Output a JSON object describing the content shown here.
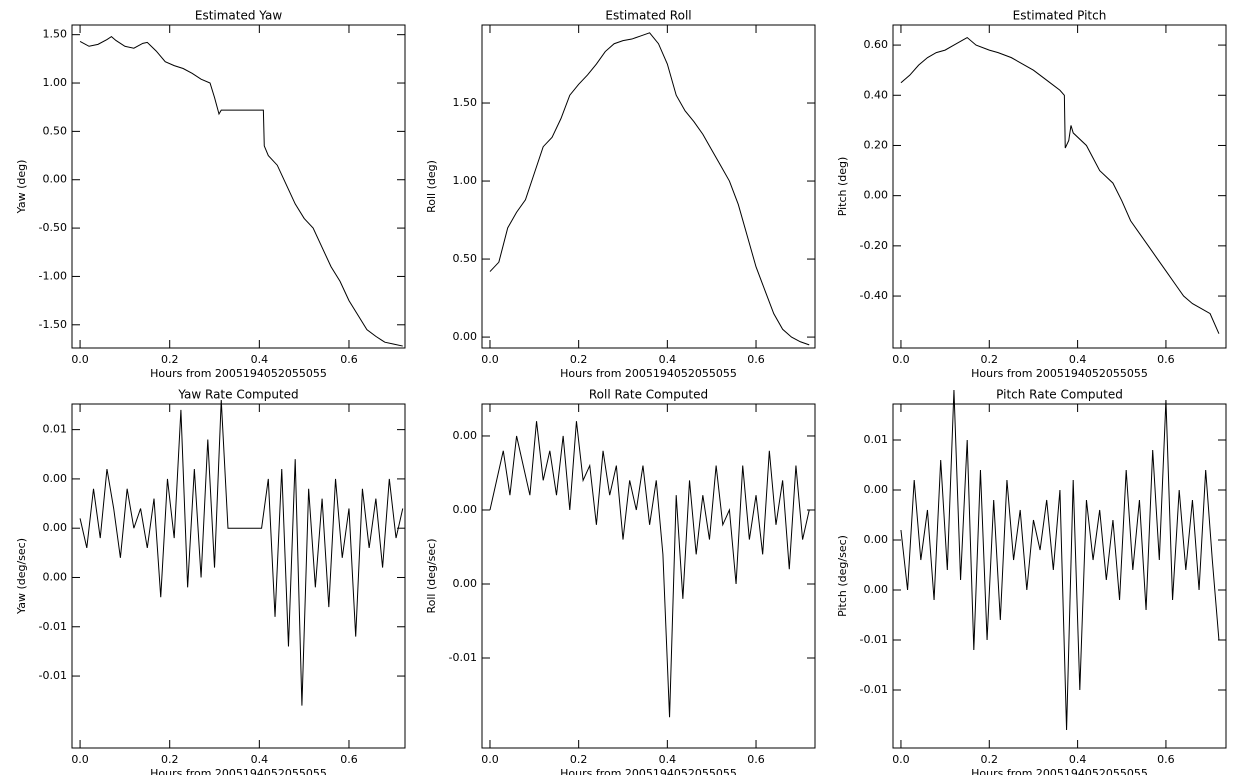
{
  "chart_data": [
    {
      "type": "line",
      "title": "Estimated Yaw",
      "x_label": "Hours from 2005194052055055",
      "y_label": "Yaw (deg)",
      "color": "#000000",
      "x": [
        0,
        0.02,
        0.04,
        0.06,
        0.07,
        0.08,
        0.1,
        0.12,
        0.14,
        0.15,
        0.17,
        0.19,
        0.21,
        0.23,
        0.25,
        0.27,
        0.29,
        0.3,
        0.31,
        0.315,
        0.409,
        0.411,
        0.42,
        0.44,
        0.46,
        0.48,
        0.5,
        0.52,
        0.54,
        0.56,
        0.58,
        0.6,
        0.62,
        0.64,
        0.66,
        0.68,
        0.7,
        0.72
      ],
      "values": [
        1.43,
        1.38,
        1.4,
        1.45,
        1.48,
        1.44,
        1.38,
        1.36,
        1.41,
        1.42,
        1.33,
        1.22,
        1.18,
        1.15,
        1.1,
        1.04,
        1.0,
        0.85,
        0.68,
        0.72,
        0.72,
        0.35,
        0.25,
        0.15,
        -0.05,
        -0.25,
        -0.4,
        -0.5,
        -0.7,
        -0.9,
        -1.05,
        -1.25,
        -1.4,
        -1.55,
        -1.62,
        -1.68,
        -1.7,
        -1.72
      ],
      "xlim": [
        -0.018,
        0.725
      ],
      "ylim": [
        1.6,
        -1.74
      ],
      "xticks": [
        {
          "value": 0,
          "label": "0.0"
        },
        0.2,
        0.4,
        0.6
      ],
      "yticks": [
        {
          "value": 1.5,
          "label": "1.50"
        },
        {
          "value": 1,
          "label": "1.00"
        },
        {
          "value": 0.5,
          "label": "0.50"
        },
        {
          "value": 0,
          "label": "0.00"
        },
        {
          "value": -0.5,
          "label": "-0.50"
        },
        {
          "value": -1,
          "label": "-1.00"
        },
        {
          "value": -1.5,
          "label": "-1.50"
        }
      ]
    },
    {
      "type": "line",
      "title": "Estimated Roll",
      "x_label": "Hours from 2005194052055055",
      "y_label": "Roll (deg)",
      "color": "#000000",
      "x": [
        0,
        0.02,
        0.04,
        0.06,
        0.08,
        0.1,
        0.12,
        0.14,
        0.16,
        0.18,
        0.2,
        0.22,
        0.24,
        0.26,
        0.28,
        0.3,
        0.32,
        0.34,
        0.36,
        0.38,
        0.4,
        0.42,
        0.44,
        0.46,
        0.48,
        0.5,
        0.52,
        0.54,
        0.56,
        0.58,
        0.6,
        0.62,
        0.64,
        0.66,
        0.68,
        0.7,
        0.72
      ],
      "values": [
        0.42,
        0.48,
        0.7,
        0.8,
        0.88,
        1.05,
        1.22,
        1.28,
        1.4,
        1.55,
        1.62,
        1.68,
        1.75,
        1.83,
        1.88,
        1.9,
        1.91,
        1.93,
        1.95,
        1.88,
        1.75,
        1.55,
        1.45,
        1.38,
        1.3,
        1.2,
        1.1,
        1.0,
        0.85,
        0.65,
        0.45,
        0.3,
        0.15,
        0.05,
        0.0,
        -0.03,
        -0.05
      ],
      "xlim": [
        -0.018,
        0.733
      ],
      "ylim": [
        2.0,
        -0.07
      ],
      "xticks": [
        {
          "value": 0,
          "label": "0.0"
        },
        0.2,
        0.4,
        0.6
      ],
      "yticks": [
        {
          "value": 1.5,
          "label": "1.50"
        },
        {
          "value": 1,
          "label": "1.00"
        },
        {
          "value": 0.5,
          "label": "0.50"
        },
        {
          "value": 0,
          "label": "0.00"
        }
      ]
    },
    {
      "type": "line",
      "title": "Estimated Pitch",
      "x_label": "Hours from 2005194052055055",
      "y_label": "Pitch (deg)",
      "color": "#000000",
      "x": [
        0,
        0.02,
        0.04,
        0.06,
        0.08,
        0.1,
        0.12,
        0.14,
        0.15,
        0.17,
        0.2,
        0.22,
        0.25,
        0.28,
        0.3,
        0.33,
        0.36,
        0.37,
        0.372,
        0.38,
        0.385,
        0.39,
        0.42,
        0.45,
        0.48,
        0.5,
        0.52,
        0.54,
        0.56,
        0.58,
        0.6,
        0.62,
        0.64,
        0.66,
        0.68,
        0.7,
        0.72
      ],
      "values": [
        0.45,
        0.48,
        0.52,
        0.55,
        0.57,
        0.58,
        0.6,
        0.62,
        0.63,
        0.6,
        0.58,
        0.57,
        0.55,
        0.52,
        0.5,
        0.46,
        0.42,
        0.4,
        0.19,
        0.22,
        0.28,
        0.25,
        0.2,
        0.1,
        0.05,
        -0.02,
        -0.1,
        -0.15,
        -0.2,
        -0.25,
        -0.3,
        -0.35,
        -0.4,
        -0.43,
        -0.45,
        -0.47,
        -0.55
      ],
      "xlim": [
        -0.018,
        0.736
      ],
      "ylim": [
        0.68,
        -0.607
      ],
      "xticks": [
        {
          "value": 0,
          "label": "0.0"
        },
        0.2,
        0.4,
        0.6
      ],
      "yticks": [
        {
          "value": 0.6,
          "label": "0.60"
        },
        {
          "value": 0.4,
          "label": "0.40"
        },
        {
          "value": 0.2,
          "label": "0.20"
        },
        {
          "value": 0,
          "label": "0.00"
        },
        {
          "value": -0.2,
          "label": "-0.20"
        },
        {
          "value": -0.4,
          "label": "-0.40"
        }
      ]
    },
    {
      "type": "line",
      "title": "Yaw Rate Computed",
      "x_label": "Hours from 2005194052055055",
      "y_label": "Yaw (deg/sec)",
      "color": "#000000",
      "x": [
        0,
        0.015,
        0.03,
        0.045,
        0.06,
        0.075,
        0.09,
        0.105,
        0.12,
        0.135,
        0.15,
        0.165,
        0.18,
        0.195,
        0.21,
        0.225,
        0.24,
        0.255,
        0.27,
        0.285,
        0.3,
        0.315,
        0.33,
        0.345,
        0.36,
        0.375,
        0.39,
        0.405,
        0.42,
        0.435,
        0.45,
        0.465,
        0.48,
        0.495,
        0.51,
        0.525,
        0.54,
        0.555,
        0.57,
        0.585,
        0.6,
        0.615,
        0.63,
        0.645,
        0.66,
        0.675,
        0.69,
        0.705,
        0.72
      ],
      "values": [
        0.001,
        -0.002,
        0.004,
        -0.001,
        0.006,
        0.002,
        -0.003,
        0.004,
        0.0,
        0.002,
        -0.002,
        0.003,
        -0.007,
        0.005,
        -0.001,
        0.012,
        -0.006,
        0.006,
        -0.005,
        0.009,
        -0.004,
        0.013,
        0,
        0,
        0,
        0,
        0,
        0,
        0.005,
        -0.009,
        0.006,
        -0.012,
        0.007,
        -0.018,
        0.004,
        -0.006,
        0.003,
        -0.008,
        0.005,
        -0.003,
        0.002,
        -0.011,
        0.004,
        -0.002,
        0.003,
        -0.004,
        0.005,
        -0.001,
        0.002
      ],
      "xlim": [
        -0.018,
        0.725
      ],
      "ylim": [
        0.0126,
        -0.0223
      ],
      "xticks": [
        {
          "value": 0,
          "label": "0.0"
        },
        0.2,
        0.4,
        0.6
      ],
      "yticks": [
        0.01,
        {
          "value": 0.005,
          "label": "0.00"
        },
        {
          "value": 0,
          "label": "0.00"
        },
        {
          "value": -0.005,
          "label": "0.00"
        },
        -0.01,
        {
          "value": -0.015,
          "label": "-0.01"
        }
      ]
    },
    {
      "type": "line",
      "title": "Roll Rate Computed",
      "x_label": "Hours from 2005194052055055",
      "y_label": "Roll (deg/sec)",
      "color": "#000000",
      "x": [
        0,
        0.015,
        0.03,
        0.045,
        0.06,
        0.075,
        0.09,
        0.105,
        0.12,
        0.135,
        0.15,
        0.165,
        0.18,
        0.195,
        0.21,
        0.225,
        0.24,
        0.255,
        0.27,
        0.285,
        0.3,
        0.315,
        0.33,
        0.345,
        0.36,
        0.375,
        0.39,
        0.405,
        0.42,
        0.435,
        0.45,
        0.465,
        0.48,
        0.495,
        0.51,
        0.525,
        0.54,
        0.555,
        0.57,
        0.585,
        0.6,
        0.615,
        0.63,
        0.645,
        0.66,
        0.675,
        0.69,
        0.705,
        0.72
      ],
      "values": [
        0.0,
        0.002,
        0.004,
        0.001,
        0.005,
        0.003,
        0.001,
        0.006,
        0.002,
        0.004,
        0.001,
        0.005,
        0.0,
        0.006,
        0.002,
        0.003,
        -0.001,
        0.004,
        0.001,
        0.003,
        -0.002,
        0.002,
        0.0,
        0.003,
        -0.001,
        0.002,
        -0.003,
        -0.014,
        0.001,
        -0.006,
        0.002,
        -0.003,
        0.001,
        -0.002,
        0.003,
        -0.001,
        0.0,
        -0.005,
        0.003,
        -0.002,
        0.001,
        -0.003,
        0.004,
        -0.001,
        0.002,
        -0.004,
        0.003,
        -0.002,
        0.0
      ],
      "xlim": [
        -0.018,
        0.733
      ],
      "ylim": [
        0.00716,
        -0.01608
      ],
      "xticks": [
        {
          "value": 0,
          "label": "0.0"
        },
        0.2,
        0.4,
        0.6
      ],
      "yticks": [
        {
          "value": 0.005,
          "label": "0.00"
        },
        {
          "value": 0,
          "label": "0.00"
        },
        {
          "value": -0.005,
          "label": "0.00"
        },
        -0.01
      ]
    },
    {
      "type": "line",
      "title": "Pitch Rate Computed",
      "x_label": "Hours from 2005194052055055",
      "y_label": "Pitch (deg/sec)",
      "color": "#000000",
      "x": [
        0,
        0.015,
        0.03,
        0.045,
        0.06,
        0.075,
        0.09,
        0.105,
        0.12,
        0.135,
        0.15,
        0.165,
        0.18,
        0.195,
        0.21,
        0.225,
        0.24,
        0.255,
        0.27,
        0.285,
        0.3,
        0.315,
        0.33,
        0.345,
        0.36,
        0.375,
        0.39,
        0.405,
        0.42,
        0.435,
        0.45,
        0.465,
        0.48,
        0.495,
        0.51,
        0.525,
        0.54,
        0.555,
        0.57,
        0.585,
        0.6,
        0.615,
        0.63,
        0.645,
        0.66,
        0.675,
        0.69,
        0.705,
        0.72
      ],
      "values": [
        0.001,
        -0.005,
        0.006,
        -0.002,
        0.003,
        -0.006,
        0.008,
        -0.003,
        0.015,
        -0.004,
        0.01,
        -0.011,
        0.007,
        -0.01,
        0.004,
        -0.008,
        0.006,
        -0.002,
        0.003,
        -0.005,
        0.002,
        -0.001,
        0.004,
        -0.003,
        0.005,
        -0.019,
        0.006,
        -0.015,
        0.004,
        -0.002,
        0.003,
        -0.004,
        0.002,
        -0.006,
        0.007,
        -0.003,
        0.004,
        -0.007,
        0.009,
        -0.002,
        0.014,
        -0.006,
        0.005,
        -0.003,
        0.004,
        -0.005,
        0.007,
        -0.002,
        -0.01
      ],
      "xlim": [
        -0.018,
        0.736
      ],
      "ylim": [
        0.0136,
        -0.0208
      ],
      "xticks": [
        {
          "value": 0,
          "label": "0.0"
        },
        0.2,
        0.4,
        0.6
      ],
      "yticks": [
        0.01,
        {
          "value": 0.005,
          "label": "0.00"
        },
        {
          "value": 0,
          "label": "0.00"
        },
        {
          "value": -0.005,
          "label": "0.00"
        },
        -0.01,
        {
          "value": -0.015,
          "label": "-0.01"
        }
      ]
    }
  ]
}
